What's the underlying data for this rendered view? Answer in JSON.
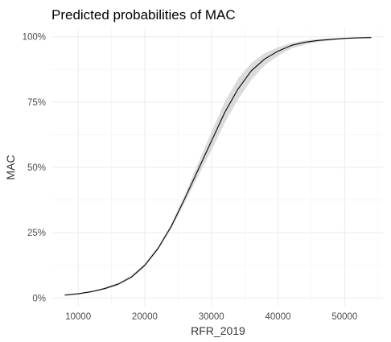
{
  "chart_data": {
    "type": "line",
    "title": "Predicted probabilities of MAC",
    "xlabel": "RFR_2019",
    "ylabel": "MAC",
    "xlim": [
      6000,
      56000
    ],
    "ylim": [
      -0.03,
      1.03
    ],
    "x_ticks": [
      10000,
      20000,
      30000,
      40000,
      50000
    ],
    "x_tick_labels": [
      "10000",
      "20000",
      "30000",
      "40000",
      "50000"
    ],
    "y_ticks": [
      0,
      0.25,
      0.5,
      0.75,
      1.0
    ],
    "y_tick_labels": [
      "0%",
      "25%",
      "50%",
      "75%",
      "100%"
    ],
    "grid": true,
    "series": [
      {
        "x": [
          8000,
          10000,
          12000,
          14000,
          16000,
          18000,
          20000,
          22000,
          24000,
          26000,
          28000,
          30000,
          32000,
          34000,
          36000,
          38000,
          40000,
          42000,
          44000,
          46000,
          48000,
          50000,
          52000,
          54000
        ],
        "y": [
          0.011,
          0.016,
          0.024,
          0.036,
          0.053,
          0.08,
          0.125,
          0.19,
          0.275,
          0.38,
          0.49,
          0.6,
          0.71,
          0.8,
          0.87,
          0.915,
          0.945,
          0.967,
          0.979,
          0.986,
          0.99,
          0.994,
          0.996,
          0.997
        ],
        "lower": [
          0.009,
          0.014,
          0.021,
          0.032,
          0.048,
          0.075,
          0.119,
          0.183,
          0.266,
          0.365,
          0.465,
          0.565,
          0.67,
          0.76,
          0.835,
          0.89,
          0.927,
          0.955,
          0.97,
          0.98,
          0.986,
          0.991,
          0.994,
          0.996
        ],
        "upper": [
          0.013,
          0.018,
          0.027,
          0.04,
          0.058,
          0.086,
          0.131,
          0.197,
          0.284,
          0.395,
          0.515,
          0.635,
          0.75,
          0.84,
          0.9,
          0.937,
          0.96,
          0.976,
          0.986,
          0.991,
          0.994,
          0.996,
          0.998,
          0.999
        ]
      }
    ]
  },
  "style": {
    "background": "#ffffff",
    "grid_major": "#ebebeb",
    "grid_minor": "#f5f5f5",
    "line_color": "#000000",
    "band_color": "#d9d9d9"
  }
}
